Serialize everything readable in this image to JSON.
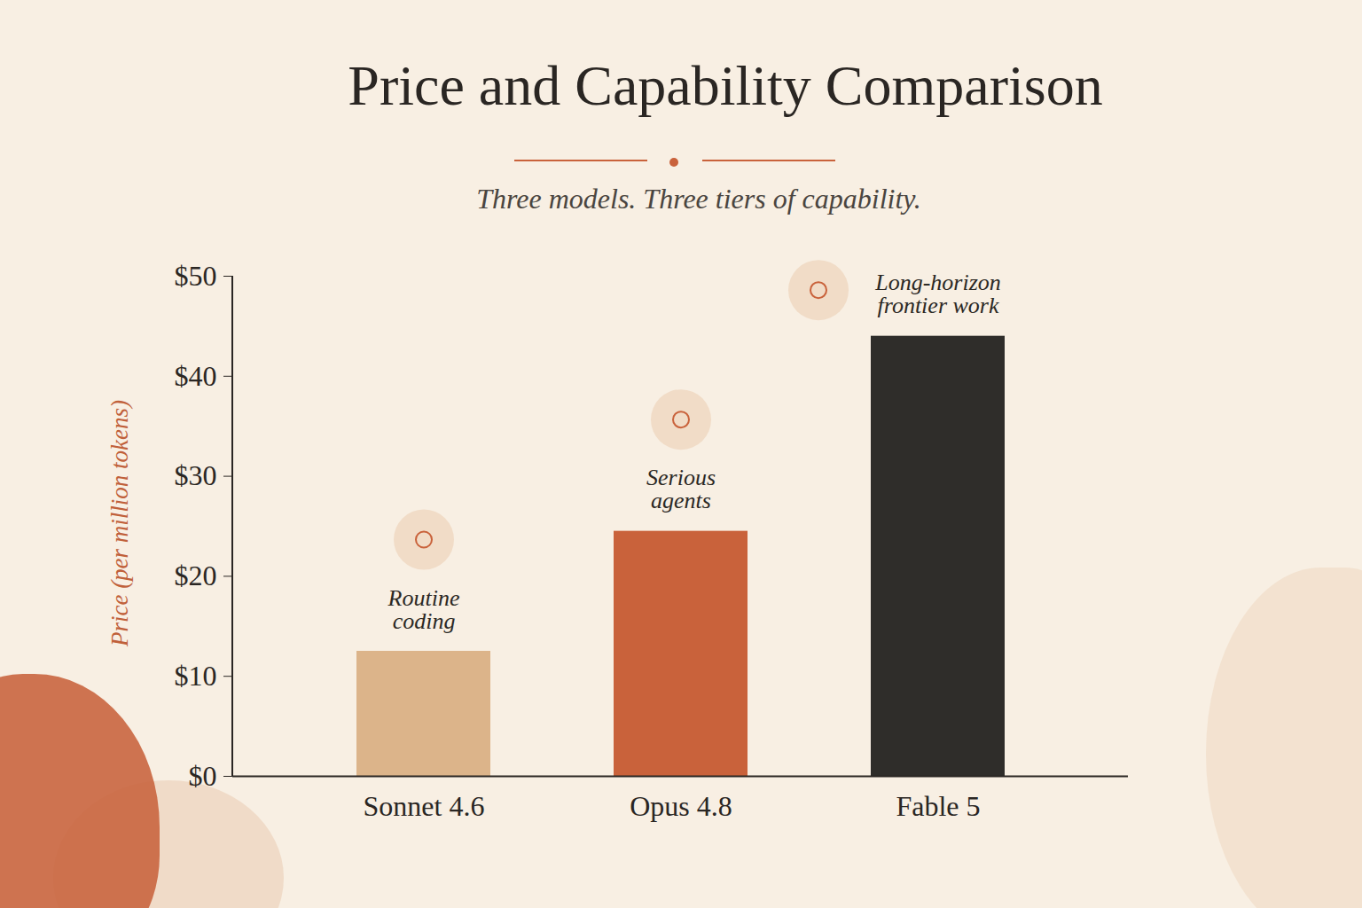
{
  "chart_data": {
    "type": "bar",
    "title": "Price and Capability Comparison",
    "subtitle": "Three models. Three tiers of capability.",
    "y_label": "Price (per million tokens)",
    "categories": [
      "Sonnet 4.6",
      "Opus 4.8",
      "Fable 5"
    ],
    "values": [
      12.5,
      24.5,
      44
    ],
    "colors": [
      "#dcb48a",
      "#c9623b",
      "#2f2d2a"
    ],
    "annotations": [
      "Routine coding",
      "Serious agents",
      "Long-horizon frontier work"
    ],
    "ylim": [
      0,
      50
    ],
    "yticks": [
      {
        "value": 0,
        "label": "$0"
      },
      {
        "value": 10,
        "label": "$10"
      },
      {
        "value": 20,
        "label": "$20"
      },
      {
        "value": 30,
        "label": "$30"
      },
      {
        "value": 40,
        "label": "$40"
      },
      {
        "value": 50,
        "label": "$50"
      }
    ],
    "grid": false
  }
}
